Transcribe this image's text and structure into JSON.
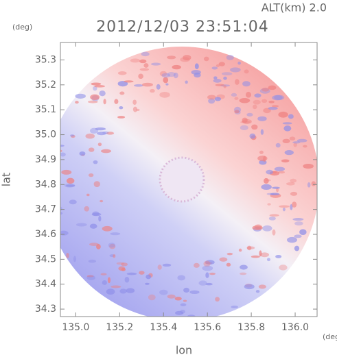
{
  "chart_data": {
    "type": "heatmap",
    "title": "2012/12/03 23:51:04",
    "subtitle": "ALT(km) 2.0",
    "x_label": "lon",
    "y_label": "lat",
    "x_unit": "(deg)",
    "y_unit": "(deg)",
    "xlim": [
      134.93,
      136.1
    ],
    "ylim": [
      34.27,
      35.37
    ],
    "xticks": [
      {
        "value": 135,
        "label": "135.0"
      },
      135.2,
      135.4,
      135.6,
      135.8,
      {
        "value": 136,
        "label": "136.0"
      }
    ],
    "yticks": [
      34.3,
      34.4,
      34.5,
      34.6,
      34.7,
      34.8,
      34.9,
      {
        "value": 35,
        "label": "35.0"
      },
      35.1,
      35.2,
      35.3
    ]
  }
}
